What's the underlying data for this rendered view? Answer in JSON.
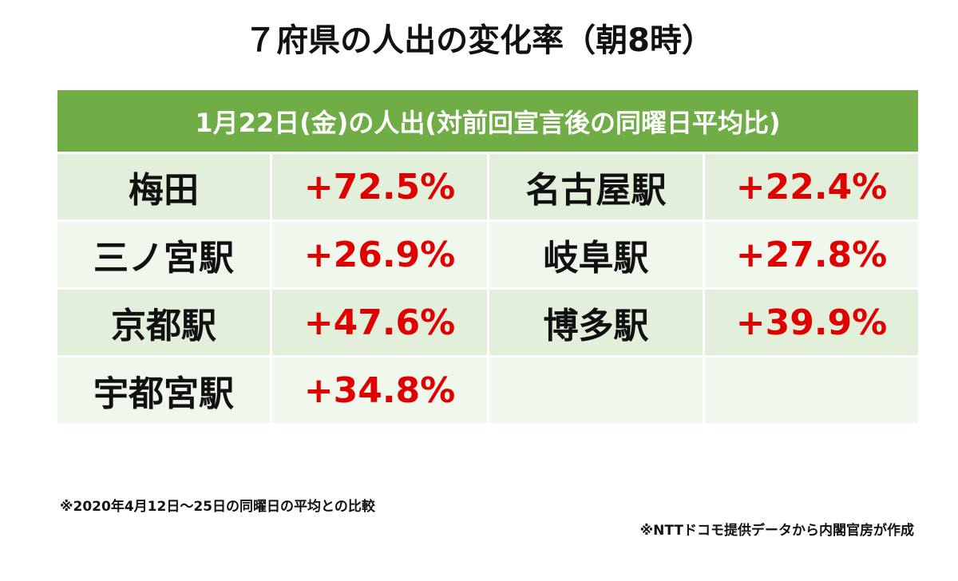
{
  "header": {
    "title": "７府県の人出の変化率（朝8時）"
  },
  "table": {
    "caption": "1月22日(金)の人出(対前回宣言後の同曜日平均比)",
    "rows": [
      [
        "梅田",
        "+72.5%",
        "名古屋駅",
        "+22.4%"
      ],
      [
        "三ノ宮駅",
        "+26.9%",
        "岐阜駅",
        "+27.8%"
      ],
      [
        "京都駅",
        "+47.6%",
        "博多駅",
        "+39.9%"
      ],
      [
        "宇都宮駅",
        "+34.8%"
      ]
    ]
  },
  "footnotes": {
    "comparison": "※2020年4月12日～25日の同曜日の平均との比較",
    "source": "※NTTドコモ提供データから内閣官房が作成"
  }
}
